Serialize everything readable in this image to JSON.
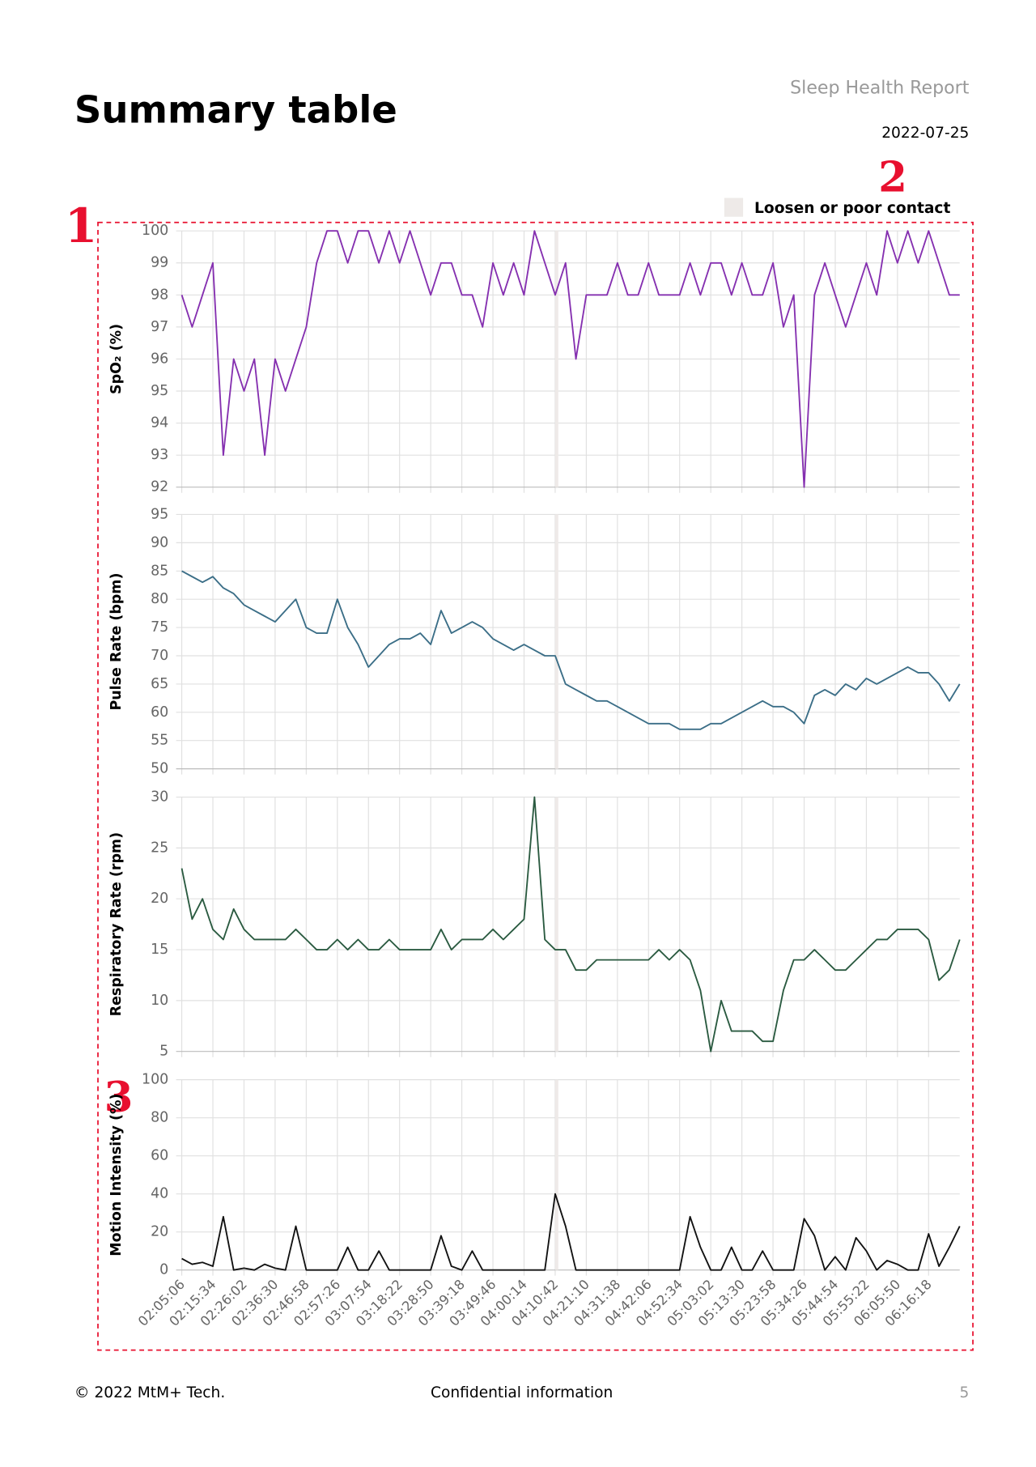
{
  "header": {
    "title": "Summary table",
    "report": "Sleep Health Report",
    "date": "2022-07-25"
  },
  "annotations": [
    "1",
    "2",
    "3"
  ],
  "contact": {
    "label": "Loosen or poor contact",
    "color": "#eeeae8",
    "ranges": [
      [
        36.0,
        36.3
      ]
    ]
  },
  "footer": {
    "left": "© 2022 MtM+ Tech.",
    "center": "Confidential information",
    "page": "5"
  },
  "chart_data": [
    {
      "type": "line",
      "ylabel": "SpO₂ (%)",
      "color": "#8530b0",
      "xlim": [
        0,
        75
      ],
      "ylim": [
        92,
        100
      ],
      "yticks": [
        92,
        93,
        94,
        95,
        96,
        97,
        98,
        99,
        100
      ],
      "values": [
        98,
        97,
        98,
        99,
        93,
        96,
        95,
        96,
        93,
        96,
        95,
        96,
        97,
        99,
        100,
        100,
        99,
        100,
        100,
        99,
        100,
        99,
        100,
        99,
        98,
        99,
        99,
        98,
        98,
        97,
        99,
        98,
        99,
        98,
        100,
        99,
        98,
        99,
        96,
        98,
        98,
        98,
        99,
        98,
        98,
        99,
        98,
        98,
        98,
        99,
        98,
        99,
        99,
        98,
        99,
        98,
        98,
        99,
        97,
        98,
        92,
        98,
        99,
        98,
        97,
        98,
        99,
        98,
        100,
        99,
        100,
        99,
        100,
        99,
        98,
        98
      ]
    },
    {
      "type": "line",
      "ylabel": "Pulse Rate (bpm)",
      "color": "#3b6e87",
      "xlim": [
        0,
        75
      ],
      "ylim": [
        50,
        95
      ],
      "yticks": [
        50,
        55,
        60,
        65,
        70,
        75,
        80,
        85,
        90,
        95
      ],
      "values": [
        85,
        84,
        83,
        84,
        82,
        81,
        79,
        78,
        77,
        76,
        78,
        80,
        75,
        74,
        74,
        80,
        75,
        72,
        68,
        70,
        72,
        73,
        73,
        74,
        72,
        78,
        74,
        75,
        76,
        75,
        73,
        72,
        71,
        72,
        71,
        70,
        70,
        65,
        64,
        63,
        62,
        62,
        61,
        60,
        59,
        58,
        58,
        58,
        57,
        57,
        57,
        58,
        58,
        59,
        60,
        61,
        62,
        61,
        61,
        60,
        58,
        63,
        64,
        63,
        65,
        64,
        66,
        65,
        66,
        67,
        68,
        67,
        67,
        65,
        62,
        65
      ]
    },
    {
      "type": "line",
      "ylabel": "Respiratory Rate (rpm)",
      "color": "#2a5a40",
      "xlim": [
        0,
        75
      ],
      "ylim": [
        5,
        30
      ],
      "yticks": [
        5,
        10,
        15,
        20,
        25,
        30
      ],
      "values": [
        23,
        18,
        20,
        17,
        16,
        19,
        17,
        16,
        16,
        16,
        16,
        17,
        16,
        15,
        15,
        16,
        15,
        16,
        15,
        15,
        16,
        15,
        15,
        15,
        15,
        17,
        15,
        16,
        16,
        16,
        17,
        16,
        17,
        18,
        30,
        16,
        15,
        15,
        13,
        13,
        14,
        14,
        14,
        14,
        14,
        14,
        15,
        14,
        15,
        14,
        11,
        5,
        10,
        7,
        7,
        7,
        6,
        6,
        11,
        14,
        14,
        15,
        14,
        13,
        13,
        14,
        15,
        16,
        16,
        17,
        17,
        17,
        16,
        12,
        13,
        16
      ]
    },
    {
      "type": "line",
      "ylabel": "Motion Intensity (%)",
      "color": "#111111",
      "xlim": [
        0,
        75
      ],
      "ylim": [
        0,
        100
      ],
      "yticks": [
        0,
        20,
        40,
        60,
        80,
        100
      ],
      "categories": [
        "02:05:06",
        null,
        null,
        "02:15:34",
        null,
        null,
        "02:26:02",
        null,
        null,
        "02:36:30",
        null,
        null,
        "02:46:58",
        null,
        null,
        "02:57:26",
        null,
        null,
        "03:07:54",
        null,
        null,
        "03:18:22",
        null,
        null,
        "03:28:50",
        null,
        null,
        "03:39:18",
        null,
        null,
        "03:49:46",
        null,
        null,
        "04:00:14",
        null,
        null,
        "04:10:42",
        null,
        null,
        "04:21:10",
        null,
        null,
        "04:31:38",
        null,
        null,
        "04:42:06",
        null,
        null,
        "04:52:34",
        null,
        null,
        "05:03:02",
        null,
        null,
        "05:13:30",
        null,
        null,
        "05:23:58",
        null,
        null,
        "05:34:26",
        null,
        null,
        "05:44:54",
        null,
        null,
        "05:55:22",
        null,
        null,
        "06:05:50",
        null,
        null,
        "06:16:18",
        null,
        null,
        null
      ],
      "values": [
        6,
        3,
        4,
        2,
        28,
        0,
        1,
        0,
        3,
        1,
        0,
        23,
        0,
        0,
        0,
        0,
        12,
        0,
        0,
        10,
        0,
        0,
        0,
        0,
        0,
        18,
        2,
        0,
        10,
        0,
        0,
        0,
        0,
        0,
        0,
        0,
        40,
        23,
        0,
        0,
        0,
        0,
        0,
        0,
        0,
        0,
        0,
        0,
        0,
        28,
        12,
        0,
        0,
        12,
        0,
        0,
        10,
        0,
        0,
        0,
        27,
        18,
        0,
        7,
        0,
        17,
        10,
        0,
        5,
        3,
        0,
        0,
        19,
        2,
        12,
        23
      ]
    }
  ]
}
